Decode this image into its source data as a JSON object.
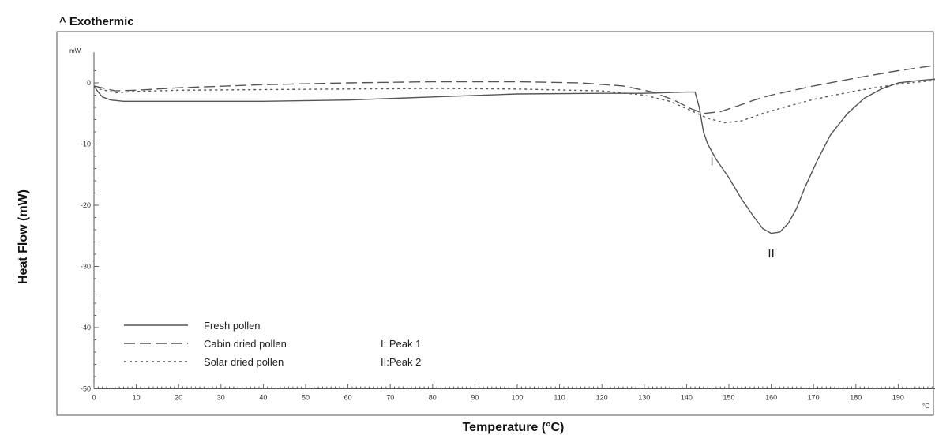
{
  "chart_data": {
    "type": "line",
    "header": "^ Exothermic",
    "xlabel": "Temperature (°C)",
    "ylabel": "Heat Flow (mW)",
    "y_unit": "mW",
    "x_unit": "°C",
    "xlim": [
      0,
      200
    ],
    "ylim": [
      -50,
      5
    ],
    "x_ticks": [
      "0",
      "10",
      "20",
      "30",
      "40",
      "50",
      "60",
      "70",
      "80",
      "90",
      "100",
      "110",
      "120",
      "130",
      "140",
      "150",
      "160",
      "170",
      "180",
      "190"
    ],
    "y_ticks": [
      "0",
      "-10",
      "-20",
      "-30",
      "-40",
      "-50"
    ],
    "grid": false,
    "legend_position": "bottom-left",
    "series": [
      {
        "name": "Fresh pollen",
        "style": "solid",
        "color": "#555555",
        "points": [
          [
            0,
            -0.5
          ],
          [
            1,
            -1.5
          ],
          [
            2,
            -2.3
          ],
          [
            4,
            -2.8
          ],
          [
            7,
            -3.0
          ],
          [
            20,
            -3.0
          ],
          [
            40,
            -3.0
          ],
          [
            60,
            -2.8
          ],
          [
            80,
            -2.3
          ],
          [
            100,
            -1.8
          ],
          [
            120,
            -1.7
          ],
          [
            130,
            -1.7
          ],
          [
            140,
            -1.5
          ],
          [
            142,
            -1.5
          ],
          [
            143,
            -4.0
          ],
          [
            144,
            -8.0
          ],
          [
            145,
            -10.0
          ],
          [
            147,
            -12.5
          ],
          [
            150,
            -15.5
          ],
          [
            153,
            -19.0
          ],
          [
            156,
            -22.0
          ],
          [
            158,
            -23.8
          ],
          [
            160,
            -24.6
          ],
          [
            162,
            -24.4
          ],
          [
            164,
            -23.0
          ],
          [
            166,
            -20.5
          ],
          [
            168,
            -17.0
          ],
          [
            171,
            -12.5
          ],
          [
            174,
            -8.5
          ],
          [
            178,
            -5.0
          ],
          [
            182,
            -2.5
          ],
          [
            186,
            -1.0
          ],
          [
            190,
            0.0
          ],
          [
            195,
            0.4
          ],
          [
            200,
            0.7
          ]
        ]
      },
      {
        "name": "Cabin dried pollen",
        "style": "dashed",
        "color": "#555555",
        "points": [
          [
            0,
            -0.5
          ],
          [
            5,
            -1.3
          ],
          [
            10,
            -1.2
          ],
          [
            20,
            -0.8
          ],
          [
            40,
            -0.3
          ],
          [
            60,
            0.0
          ],
          [
            80,
            0.2
          ],
          [
            100,
            0.2
          ],
          [
            115,
            0.0
          ],
          [
            125,
            -0.5
          ],
          [
            132,
            -1.5
          ],
          [
            137,
            -2.8
          ],
          [
            141,
            -4.2
          ],
          [
            144,
            -5.0
          ],
          [
            148,
            -4.7
          ],
          [
            152,
            -3.8
          ],
          [
            156,
            -2.8
          ],
          [
            160,
            -2.0
          ],
          [
            170,
            -0.5
          ],
          [
            180,
            0.8
          ],
          [
            190,
            2.0
          ],
          [
            200,
            3.0
          ]
        ]
      },
      {
        "name": "Solar dried pollen",
        "style": "dotted",
        "color": "#555555",
        "points": [
          [
            0,
            -0.8
          ],
          [
            5,
            -1.6
          ],
          [
            10,
            -1.4
          ],
          [
            20,
            -1.2
          ],
          [
            40,
            -1.1
          ],
          [
            60,
            -1.0
          ],
          [
            80,
            -0.9
          ],
          [
            100,
            -1.0
          ],
          [
            120,
            -1.3
          ],
          [
            130,
            -2.0
          ],
          [
            136,
            -3.0
          ],
          [
            141,
            -4.5
          ],
          [
            145,
            -5.8
          ],
          [
            149,
            -6.5
          ],
          [
            153,
            -6.2
          ],
          [
            158,
            -5.0
          ],
          [
            164,
            -3.8
          ],
          [
            170,
            -2.7
          ],
          [
            180,
            -1.3
          ],
          [
            190,
            -0.2
          ],
          [
            200,
            0.5
          ]
        ]
      }
    ],
    "annotations": [
      {
        "text": "I",
        "x": 146,
        "y": -13.5
      },
      {
        "text": "II",
        "x": 160,
        "y": -28.5
      }
    ],
    "notes": [
      "I: Peak 1",
      "II:Peak 2"
    ]
  }
}
